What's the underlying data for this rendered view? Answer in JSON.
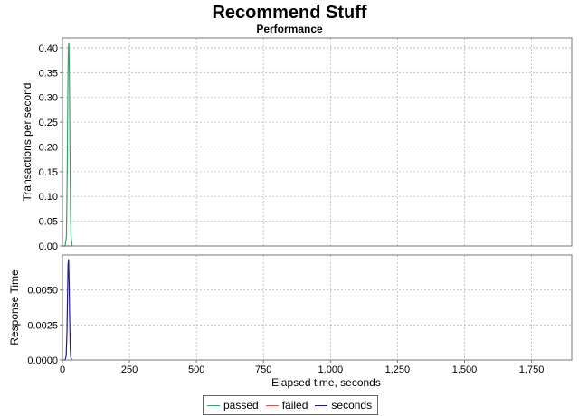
{
  "chart_data": {
    "type": "line",
    "title": "Recommend Stuff",
    "subtitle": "Performance",
    "xlabel": "Elapsed time, seconds",
    "xlim": [
      0,
      1900
    ],
    "xticks": [
      "0",
      "250",
      "500",
      "750",
      "1,000",
      "1,250",
      "1,500",
      "1,750"
    ],
    "xtick_values": [
      0,
      250,
      500,
      750,
      1000,
      1250,
      1500,
      1750
    ],
    "grid": true,
    "legend_position": "bottom-center",
    "panels": [
      {
        "ylabel": "Transactions per second",
        "ylim": [
          0,
          0.42
        ],
        "yticks": [
          "0.00",
          "0.05",
          "0.10",
          "0.15",
          "0.20",
          "0.25",
          "0.30",
          "0.35",
          "0.40"
        ],
        "ytick_values": [
          0,
          0.05,
          0.1,
          0.15,
          0.2,
          0.25,
          0.3,
          0.35,
          0.4
        ],
        "series": [
          {
            "name": "passed",
            "color": "#3aa06a",
            "x": [
              0,
              10,
              15,
              18,
              20,
              22,
              24,
              26,
              28,
              30,
              32,
              36
            ],
            "y": [
              0,
              0,
              0.02,
              0.15,
              0.3,
              0.4,
              0.41,
              0.35,
              0.2,
              0.08,
              0.02,
              0
            ]
          },
          {
            "name": "failed",
            "color": "#d9534f",
            "x": [
              0,
              36
            ],
            "y": [
              0,
              0
            ]
          }
        ]
      },
      {
        "ylabel": "Response Time",
        "ylim": [
          0,
          0.0075
        ],
        "yticks": [
          "0.0000",
          "0.0025",
          "0.0050"
        ],
        "ytick_values": [
          0,
          0.0025,
          0.005
        ],
        "series": [
          {
            "name": "seconds",
            "color": "#1a1aa0",
            "x": [
              0,
              10,
              14,
              17,
              19,
              21,
              23,
              25,
              27,
              29,
              31,
              35
            ],
            "y": [
              0,
              0,
              0.0003,
              0.002,
              0.0045,
              0.0068,
              0.0072,
              0.0055,
              0.003,
              0.001,
              0.0002,
              0
            ]
          }
        ]
      }
    ],
    "legend": [
      {
        "name": "passed",
        "color": "#3aa06a"
      },
      {
        "name": "failed",
        "color": "#d9534f"
      },
      {
        "name": "seconds",
        "color": "#1a1aa0"
      }
    ]
  }
}
